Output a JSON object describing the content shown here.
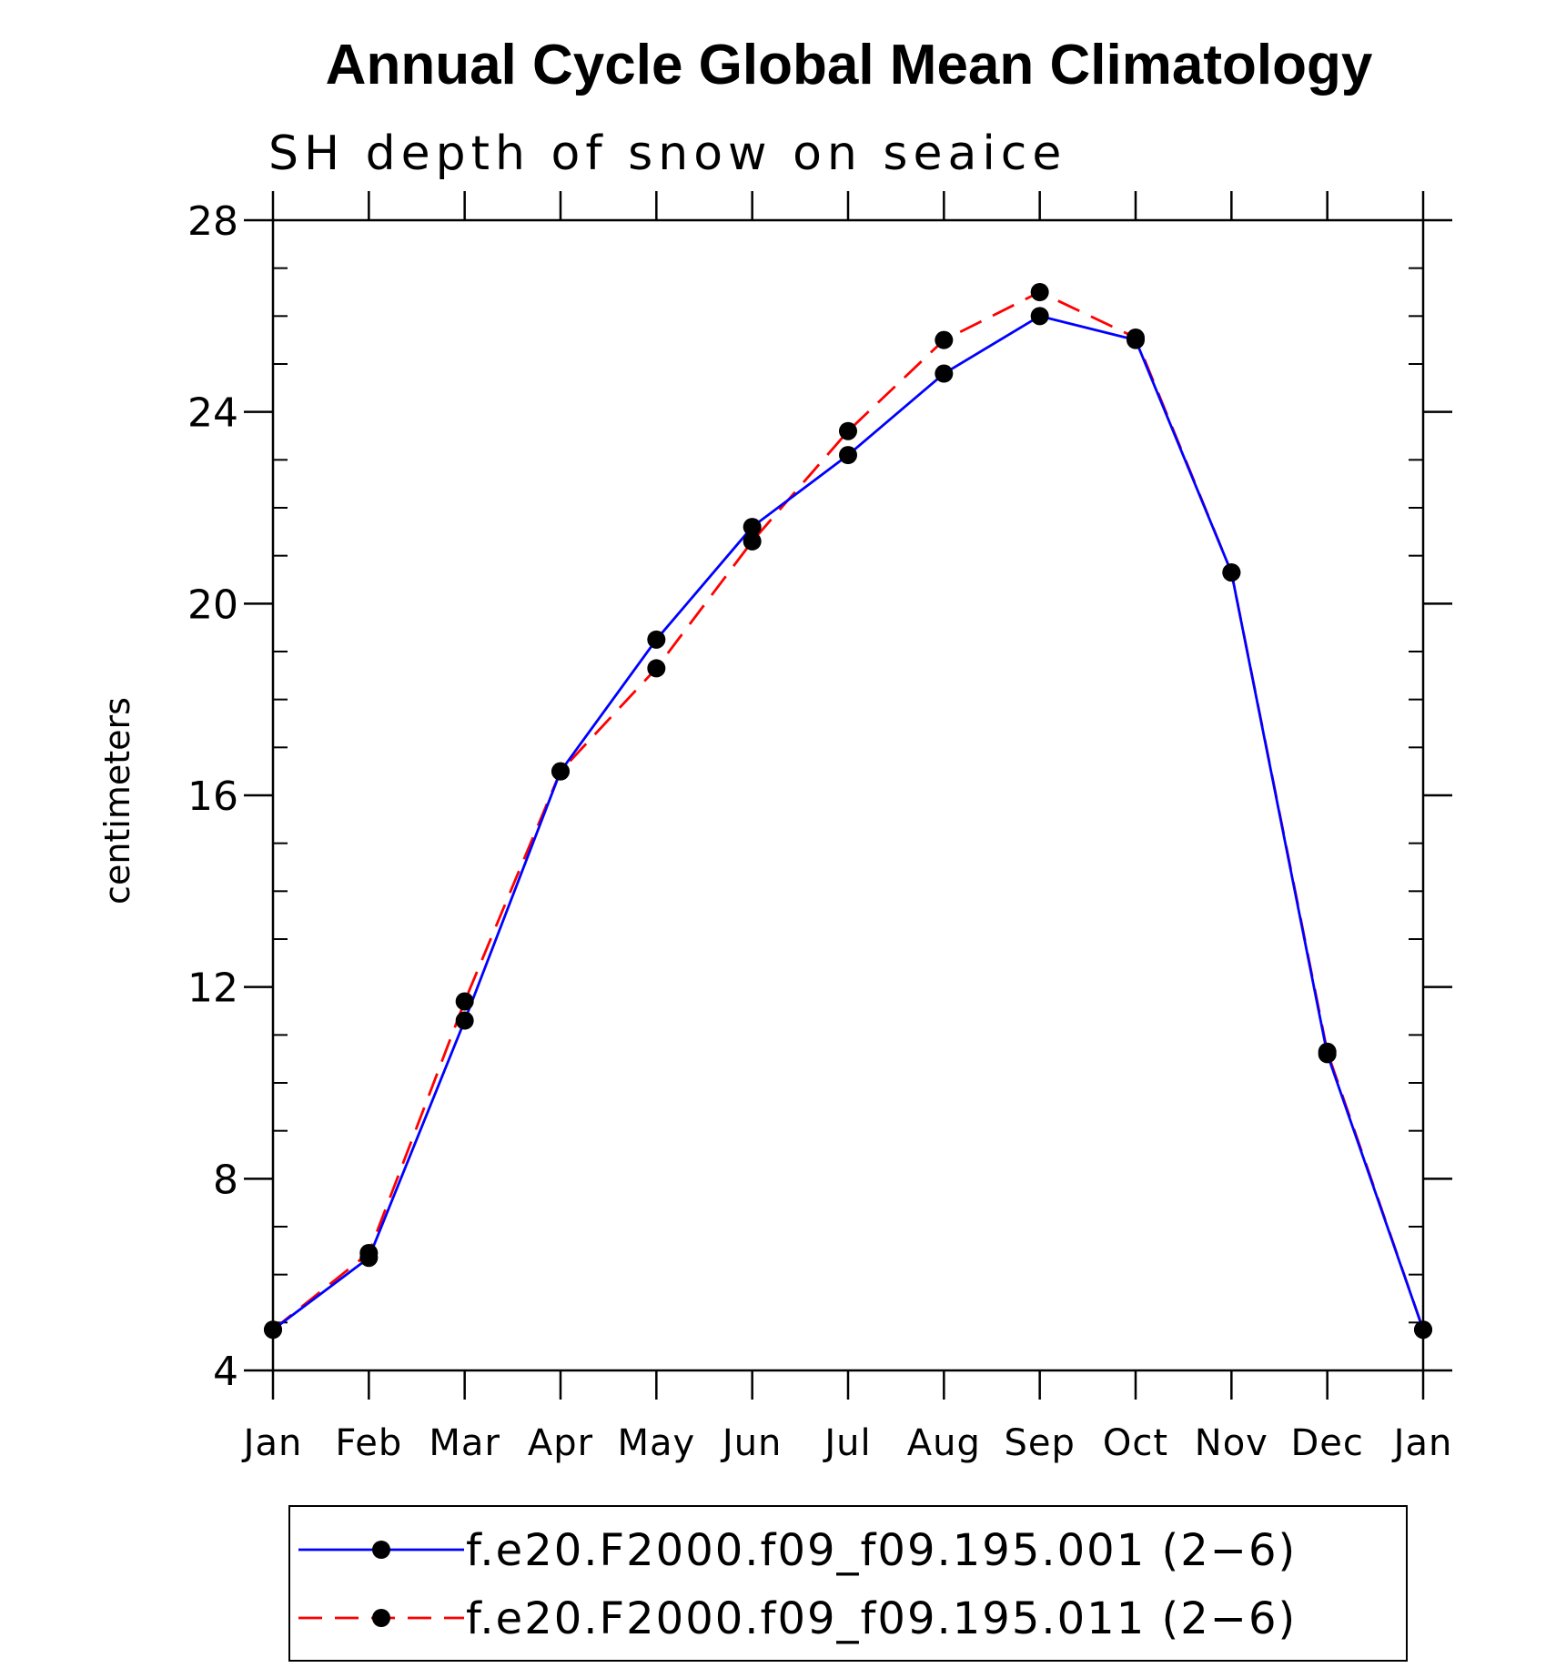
{
  "chart_data": {
    "type": "line",
    "title": "Annual Cycle Global Mean Climatology",
    "subtitle": "SH depth of snow on seaice",
    "xlabel": "",
    "ylabel": "centimeters",
    "categories": [
      "Jan",
      "Feb",
      "Mar",
      "Apr",
      "May",
      "Jun",
      "Jul",
      "Aug",
      "Sep",
      "Oct",
      "Nov",
      "Dec",
      "Jan"
    ],
    "ylim": [
      4,
      28
    ],
    "yticks": [
      4,
      8,
      12,
      16,
      20,
      24,
      28
    ],
    "legend_position": "bottom",
    "series": [
      {
        "name": "f.e20.F2000.f09_f09.195.001 (2−6)",
        "color": "#0000ff",
        "line_style": "solid",
        "marker": "filled-circle",
        "values": [
          4.85,
          6.35,
          11.3,
          16.5,
          19.25,
          21.6,
          23.1,
          24.8,
          26.0,
          25.5,
          20.65,
          10.6,
          4.85
        ]
      },
      {
        "name": "f.e20.F2000.f09_f09.195.011 (2−6)",
        "color": "#ff0000",
        "line_style": "dashed",
        "marker": "filled-circle",
        "values": [
          4.85,
          6.45,
          11.7,
          16.5,
          18.65,
          21.3,
          23.6,
          25.5,
          26.5,
          25.55,
          20.65,
          10.65,
          4.85
        ]
      }
    ]
  }
}
